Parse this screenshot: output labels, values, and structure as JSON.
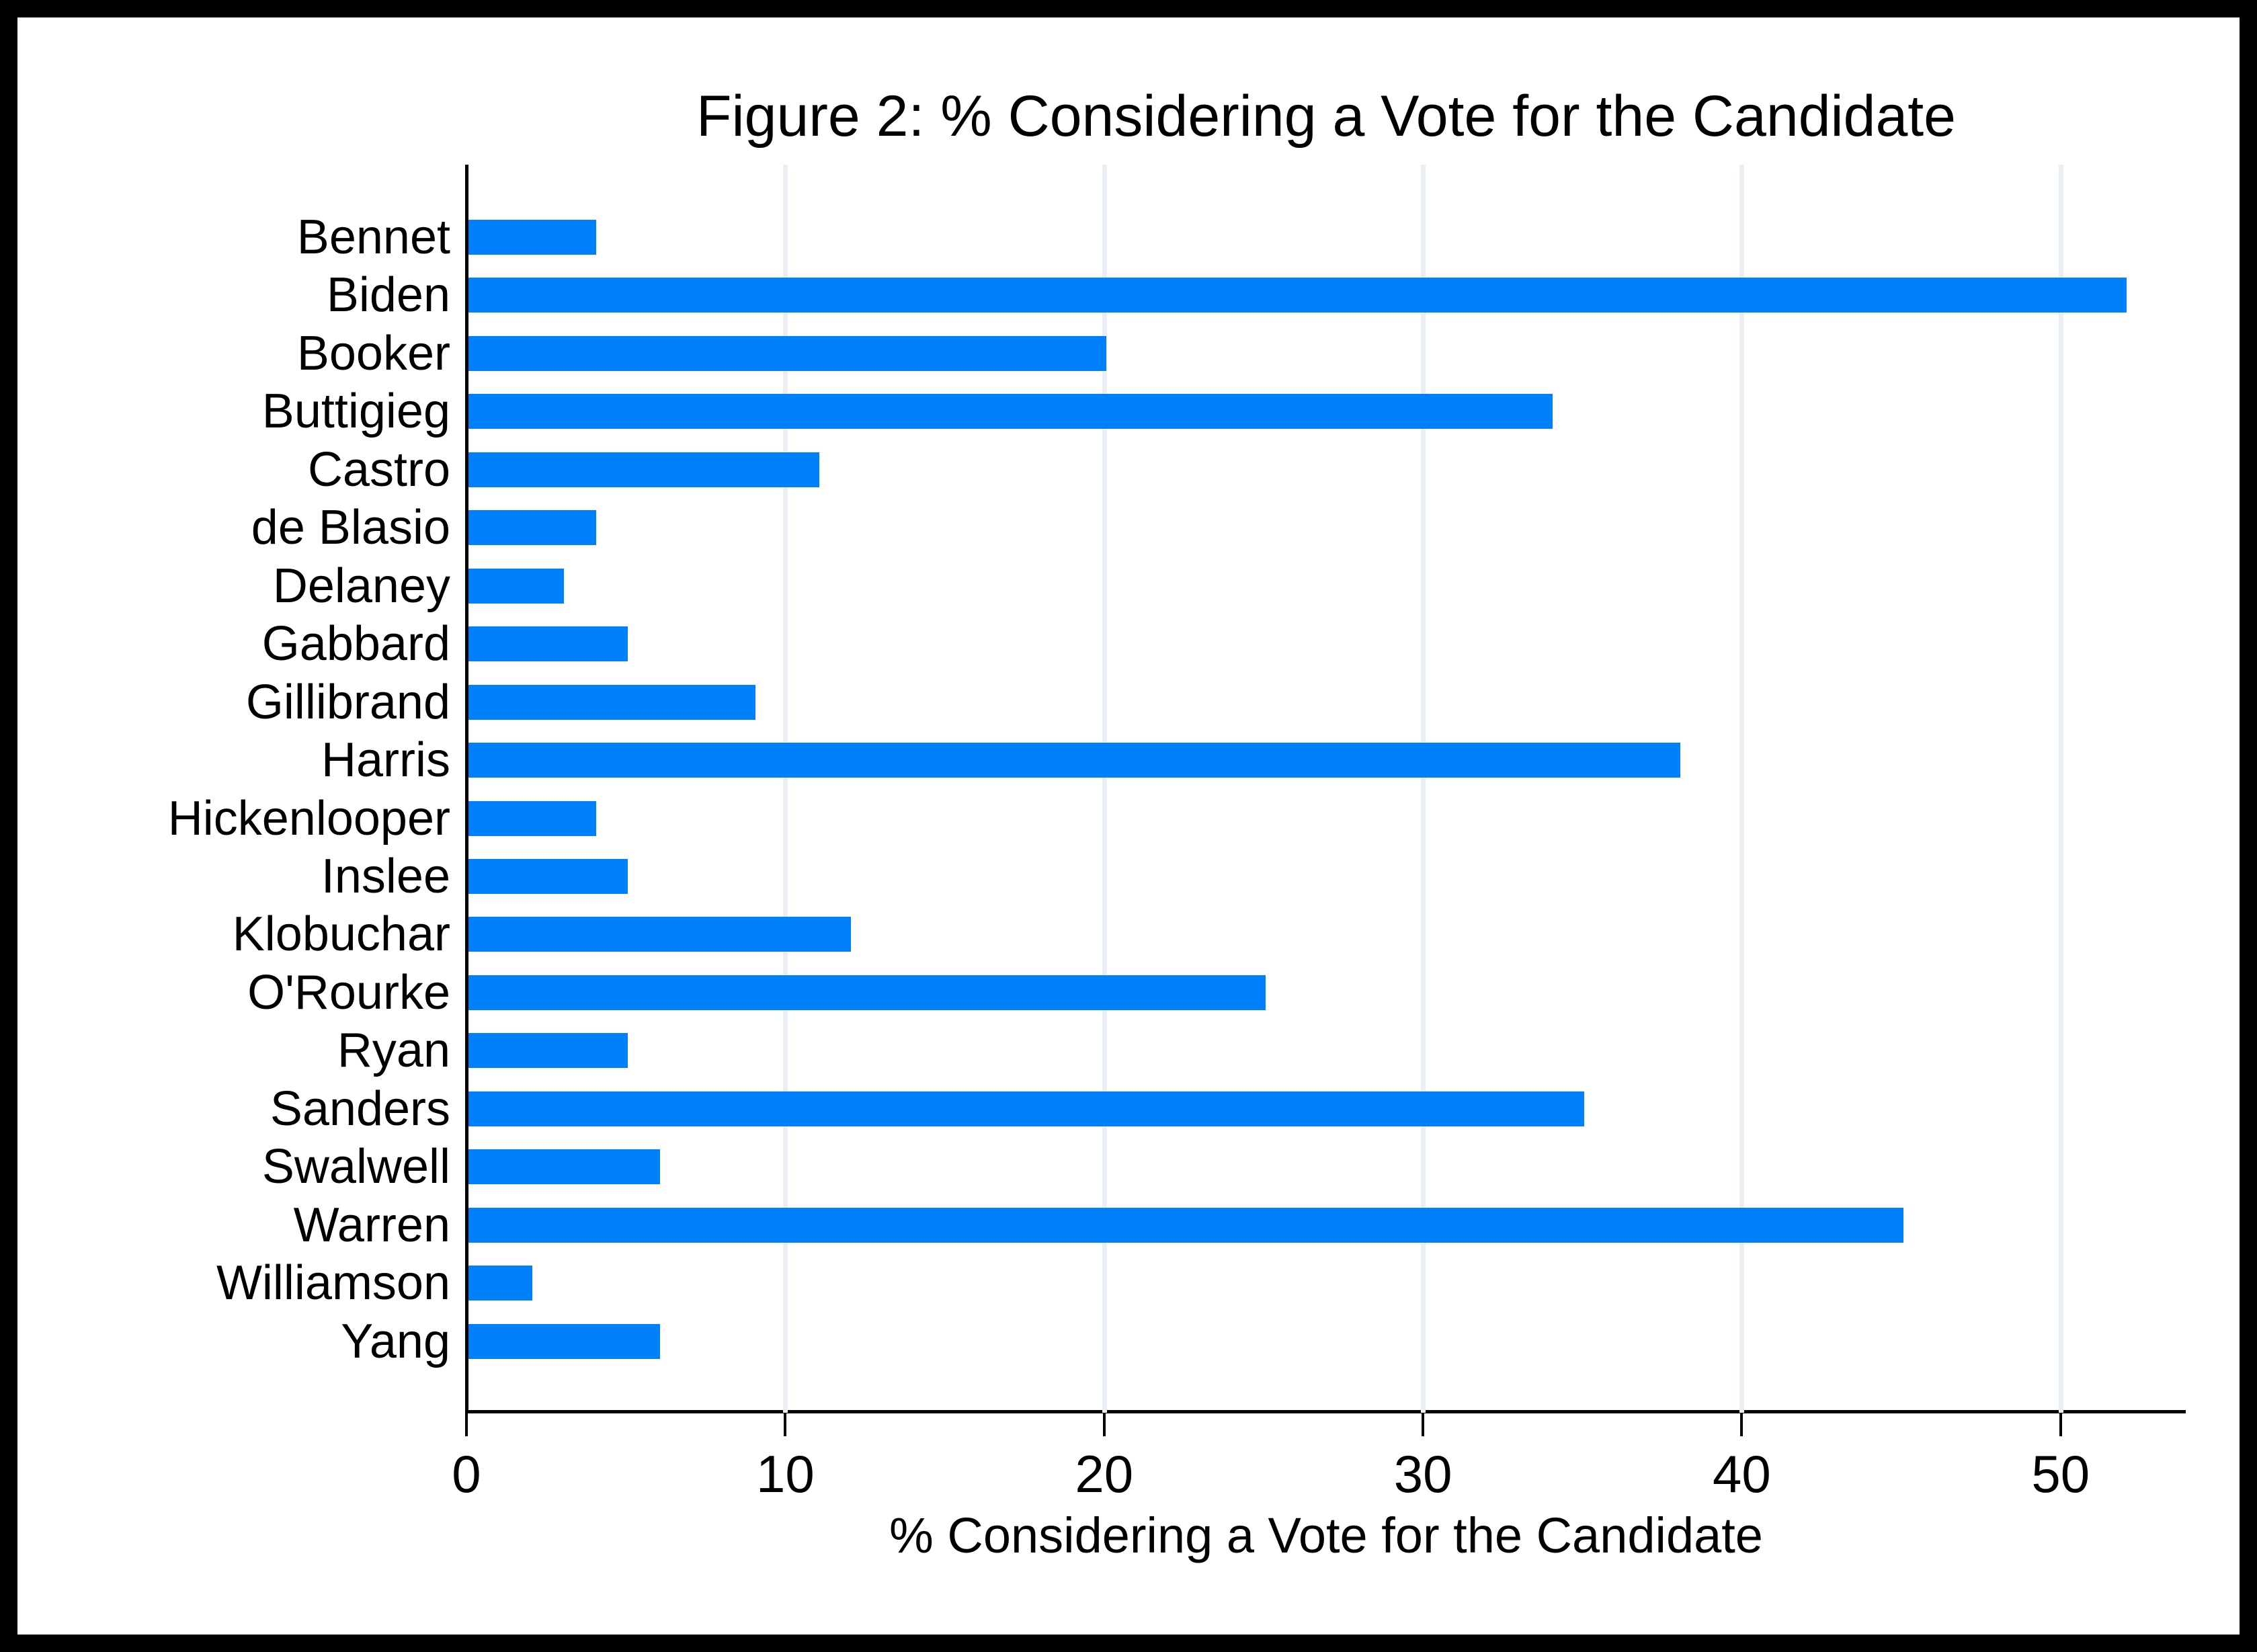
{
  "chart_data": {
    "type": "bar",
    "orientation": "horizontal",
    "title": "Figure 2: % Considering a Vote for the Candidate",
    "xlabel": "% Considering a Vote for the Candidate",
    "ylabel": "",
    "categories": [
      "Bennet",
      "Biden",
      "Booker",
      "Buttigieg",
      "Castro",
      "de Blasio",
      "Delaney",
      "Gabbard",
      "Gillibrand",
      "Harris",
      "Hickenlooper",
      "Inslee",
      "Klobuchar",
      "O'Rourke",
      "Ryan",
      "Sanders",
      "Swalwell",
      "Warren",
      "Williamson",
      "Yang"
    ],
    "values": [
      4,
      52,
      20,
      34,
      11,
      4,
      3,
      5,
      9,
      38,
      4,
      5,
      12,
      25,
      5,
      35,
      6,
      45,
      2,
      6
    ],
    "xticks": [
      0,
      10,
      20,
      30,
      40,
      50
    ],
    "xlim": [
      0,
      53.9
    ],
    "grid": "vertical-gridlines-on",
    "legend": "none",
    "bar_color": "#0080fb",
    "gridline_color": "#e9eff4",
    "axis_color": "#000000",
    "frame_color": "#000000",
    "background_color": "#ffffff"
  }
}
